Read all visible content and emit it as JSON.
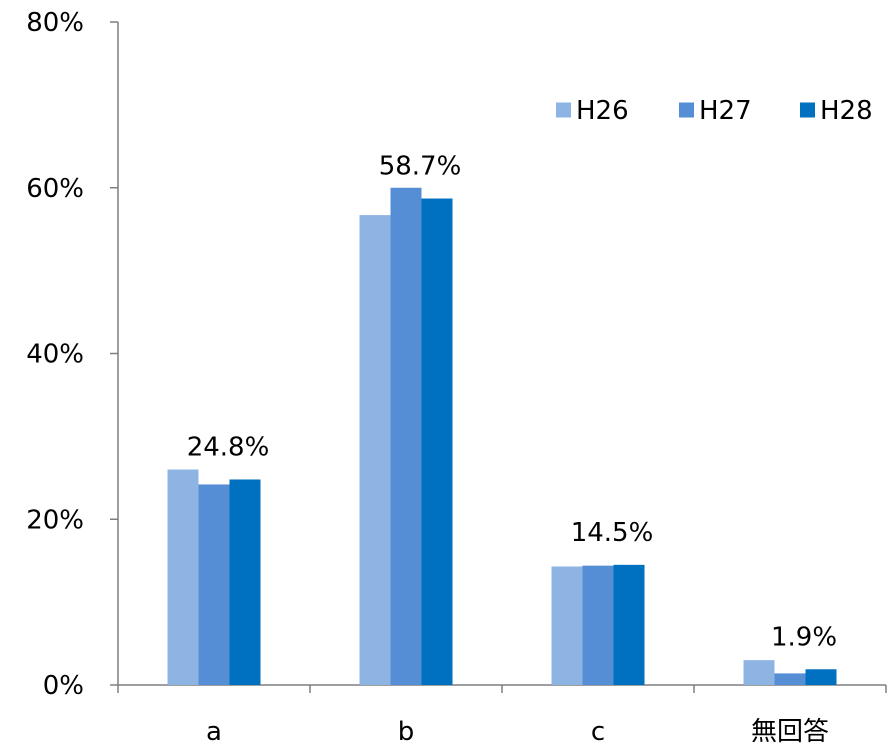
{
  "chart_data": {
    "type": "bar",
    "categories": [
      "a",
      "b",
      "c",
      "無回答"
    ],
    "series": [
      {
        "name": "H26",
        "values": [
          26.0,
          56.7,
          14.3,
          3.0
        ],
        "color": "#8EB4E3"
      },
      {
        "name": "H27",
        "values": [
          24.2,
          60.0,
          14.4,
          1.4
        ],
        "color": "#558ED5"
      },
      {
        "name": "H28",
        "values": [
          24.8,
          58.7,
          14.5,
          1.9
        ],
        "color": "#0070C0"
      }
    ],
    "data_labels": [
      "24.8%",
      "58.7%",
      "14.5%",
      "1.9%"
    ],
    "data_label_series": "H28",
    "y_ticks": [
      "0%",
      "20%",
      "40%",
      "60%",
      "80%"
    ],
    "ylim": [
      0,
      80
    ],
    "title": "",
    "xlabel": "",
    "ylabel": "",
    "grid": false,
    "legend_position": "top-right"
  }
}
